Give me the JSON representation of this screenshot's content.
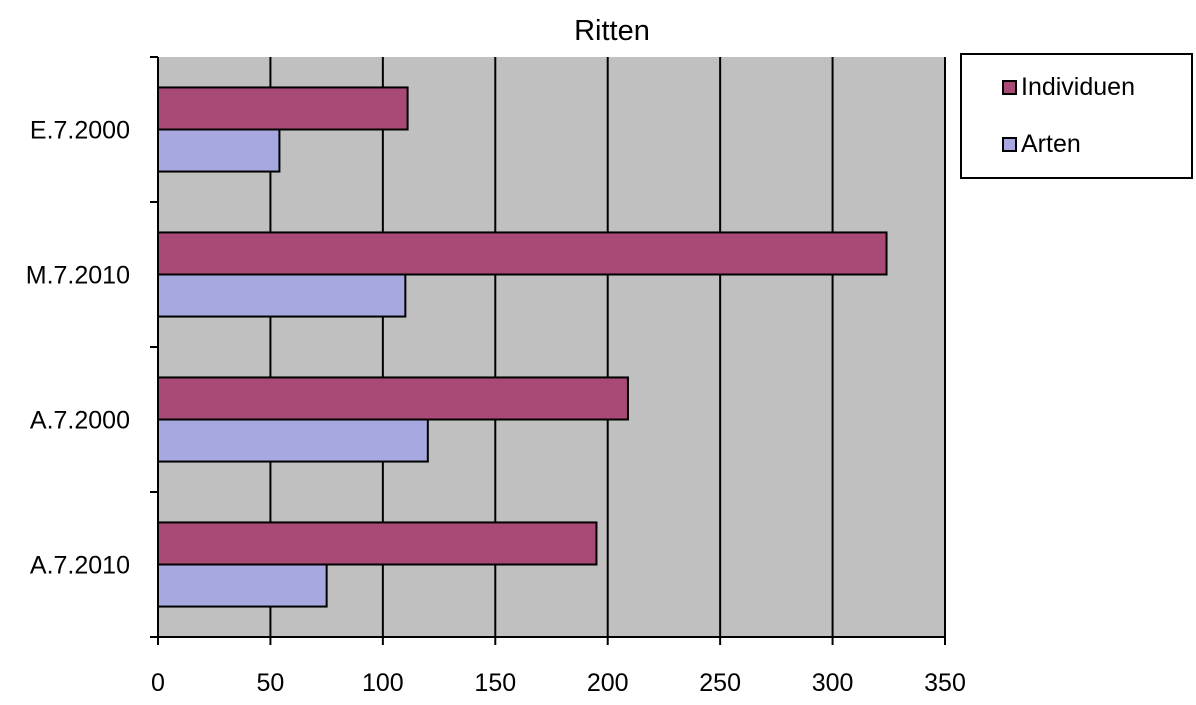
{
  "chart_data": {
    "type": "bar",
    "orientation": "horizontal",
    "title": "Ritten",
    "xlabel": "",
    "ylabel": "",
    "categories": [
      "A.7.2010",
      "A.7.2000",
      "M.7.2010",
      "E.7.2000"
    ],
    "series": [
      {
        "name": "Individuen",
        "values": [
          195,
          209,
          324,
          111
        ],
        "color": "#a94a76"
      },
      {
        "name": "Arten",
        "values": [
          75,
          120,
          110,
          54
        ],
        "color": "#a8a8e0"
      }
    ],
    "xlim": [
      0,
      350
    ],
    "x_ticks": [
      "0",
      "50",
      "100",
      "150",
      "200",
      "250",
      "300",
      "350"
    ],
    "grid": true,
    "plot_background": "#c0c0c0",
    "legend_position": "top-right"
  }
}
